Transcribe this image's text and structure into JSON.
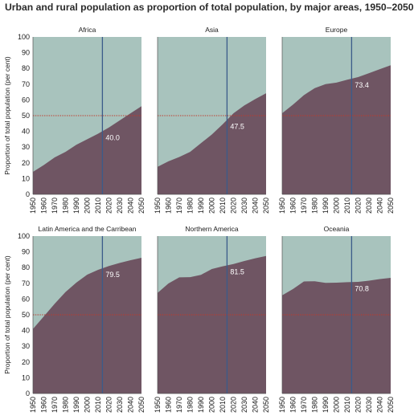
{
  "chart_data": {
    "type": "area",
    "title": "Urban and rural population as proportion of total population, by major areas, 1950–2050",
    "ylabel": "Proportion of total population (per cent)",
    "ylim": [
      0,
      100
    ],
    "yticks": [
      0,
      10,
      20,
      30,
      40,
      50,
      60,
      70,
      80,
      90,
      100
    ],
    "x_categories": [
      "1950",
      "1960",
      "1970",
      "1980",
      "1990",
      "2000",
      "2010",
      "2020",
      "2030",
      "2040",
      "2050"
    ],
    "reference_line": 50,
    "marker_year": 2014,
    "colors": {
      "urban": "#6f5563",
      "rural": "#a8c3bd",
      "reference_line": "#c0392b",
      "marker_line": "#3b5b8a"
    },
    "panels": [
      {
        "title": "Africa",
        "marker_value_label": "40.0",
        "urban_share": [
          14.3,
          18.6,
          23.5,
          27.0,
          31.5,
          35.0,
          38.5,
          42.5,
          47.0,
          51.5,
          56.0
        ]
      },
      {
        "title": "Asia",
        "marker_value_label": "47.5",
        "urban_share": [
          17.5,
          21.0,
          23.7,
          27.0,
          32.5,
          38.0,
          44.5,
          51.5,
          56.5,
          60.5,
          64.2
        ]
      },
      {
        "title": "Europe",
        "marker_value_label": "73.4",
        "urban_share": [
          51.5,
          57.0,
          63.0,
          67.5,
          70.0,
          71.0,
          72.8,
          74.5,
          77.0,
          79.5,
          82.0
        ]
      },
      {
        "title": "Latin America and the Carribean",
        "marker_value_label": "79.5",
        "urban_share": [
          41.0,
          49.0,
          57.0,
          64.5,
          70.5,
          75.5,
          78.6,
          81.0,
          83.0,
          84.7,
          86.2
        ]
      },
      {
        "title": "Northern America",
        "marker_value_label": "81.5",
        "urban_share": [
          63.9,
          69.9,
          73.8,
          73.9,
          75.4,
          79.1,
          80.8,
          82.3,
          84.2,
          85.9,
          87.4
        ]
      },
      {
        "title": "Oceania",
        "marker_value_label": "70.8",
        "urban_share": [
          62.4,
          66.4,
          71.2,
          71.3,
          70.3,
          70.4,
          70.7,
          70.9,
          71.7,
          72.7,
          73.5
        ]
      }
    ]
  }
}
